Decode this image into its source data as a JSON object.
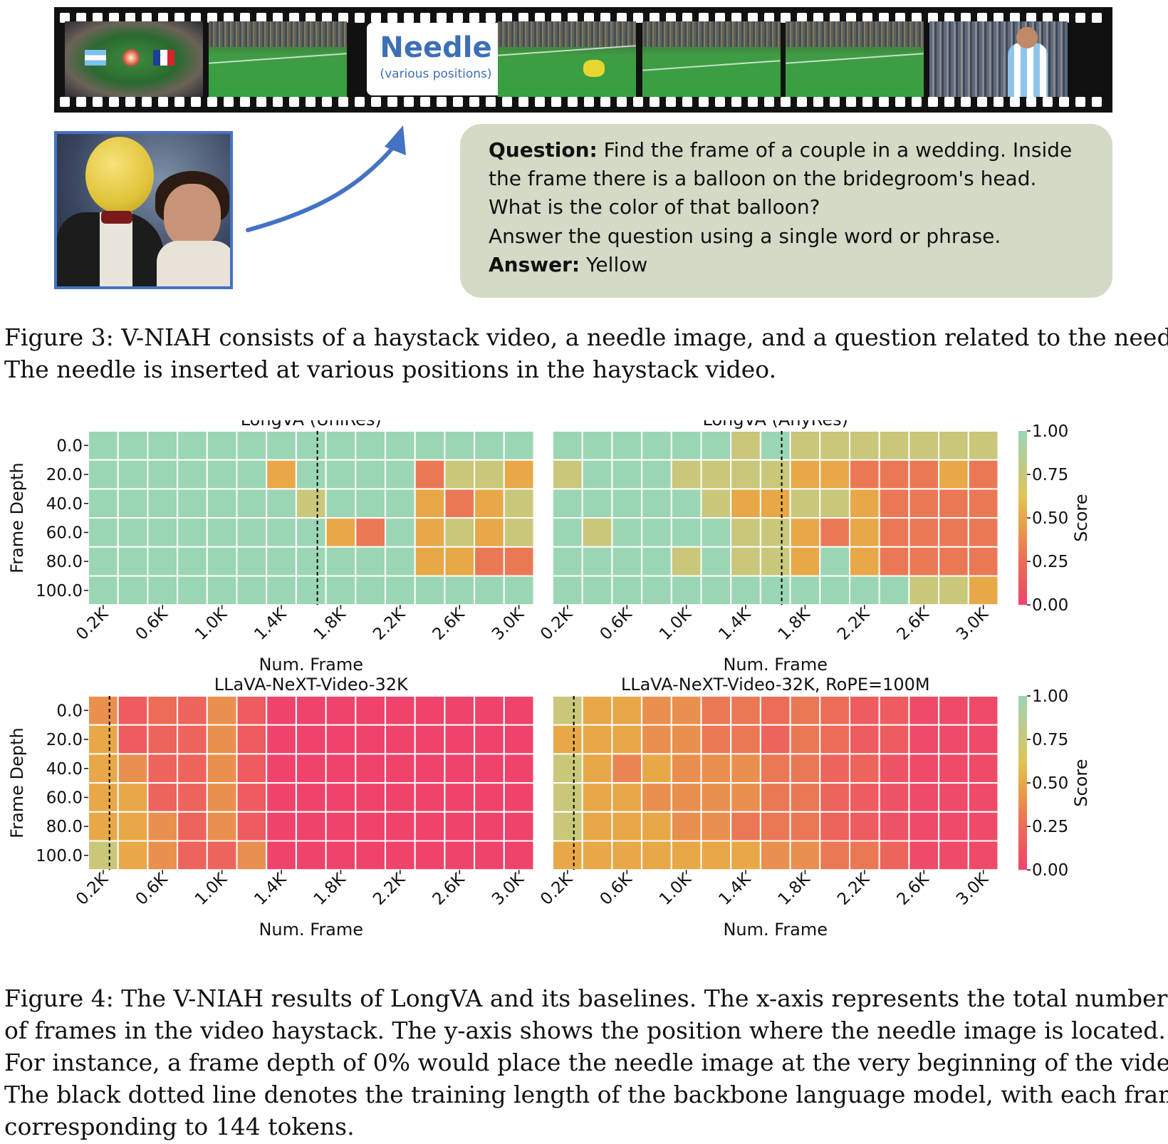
{
  "figure3": {
    "needle_label": "Needle",
    "needle_sublabel": "(various positions)",
    "question_label": "Question:",
    "question_lines": [
      "Find the frame of a couple in a wedding. Inside",
      "the frame there is a balloon on the bridegroom's head.",
      "What is the color of that balloon?",
      "Answer the question using a single word or phrase."
    ],
    "answer_label": "Answer:",
    "answer_text": "Yellow",
    "caption_lines": [
      "Figure 3: V-NIAH consists of a haystack video, a needle image, and a question related to the needle.",
      "The needle is inserted at various positions in the haystack video."
    ],
    "colors": {
      "needle_blue": "#3d6fb6",
      "qa_box": "#d3dac6",
      "arrow": "#4472c4"
    }
  },
  "figure4": {
    "caption_lines": [
      "Figure 4: The V-NIAH results of LongVA and its baselines. The x-axis represents the total number",
      "of frames in the video haystack. The y-axis shows the position where the needle image is located.",
      "For instance, a frame depth of 0% would place the needle image at the very beginning of the video.",
      "The black dotted line denotes the training length of the backbone language model, with each frame",
      "corresponding to 144 tokens."
    ]
  },
  "chart_data": [
    {
      "type": "heatmap",
      "title": "LongVA (UniRes)",
      "xlabel": "Num. Frame",
      "ylabel": "Frame Depth",
      "colorbar_label": "Score",
      "colorbar_ticks": [
        "1.00",
        "0.75",
        "0.50",
        "0.25",
        "0.00"
      ],
      "x_tick_labels": [
        "0.2K",
        "0.6K",
        "1.0K",
        "1.4K",
        "1.8K",
        "2.2K",
        "2.6K",
        "3.0K"
      ],
      "y": [
        "0.0",
        "20.0",
        "40.0",
        "60.0",
        "80.0",
        "100.0"
      ],
      "columns": 15,
      "dotted_line_after_column": 8,
      "values": [
        [
          1,
          1,
          1,
          1,
          1,
          1,
          1,
          1,
          1,
          1,
          1,
          1,
          1,
          1,
          1
        ],
        [
          1,
          1,
          1,
          1,
          1,
          1,
          0.5,
          1,
          1,
          1,
          1,
          0.3,
          0.75,
          0.75,
          0.5
        ],
        [
          1,
          1,
          1,
          1,
          1,
          1,
          1,
          0.75,
          1,
          1,
          1,
          0.5,
          0.3,
          0.5,
          0.75
        ],
        [
          1,
          1,
          1,
          1,
          1,
          1,
          1,
          1,
          0.5,
          0.3,
          1,
          0.5,
          0.75,
          0.5,
          0.75
        ],
        [
          1,
          1,
          1,
          1,
          1,
          1,
          1,
          1,
          1,
          1,
          1,
          0.5,
          0.5,
          0.3,
          0.3
        ],
        [
          1,
          1,
          1,
          1,
          1,
          1,
          1,
          1,
          1,
          1,
          1,
          1,
          1,
          1,
          1
        ]
      ]
    },
    {
      "type": "heatmap",
      "title": "LongVA (AnyRes)",
      "xlabel": "Num. Frame",
      "colorbar_label": "Score",
      "colorbar_ticks": [
        "1.00",
        "0.75",
        "0.50",
        "0.25",
        "0.00"
      ],
      "x_tick_labels": [
        "0.2K",
        "0.6K",
        "1.0K",
        "1.4K",
        "1.8K",
        "2.2K",
        "2.6K",
        "3.0K"
      ],
      "y": [
        "0.0",
        "20.0",
        "40.0",
        "60.0",
        "80.0",
        "100.0"
      ],
      "columns": 15,
      "dotted_line_after_column": 8,
      "values": [
        [
          1,
          1,
          1,
          1,
          1,
          1,
          0.75,
          1,
          0.75,
          0.75,
          0.75,
          0.75,
          0.75,
          0.75,
          0.75
        ],
        [
          0.75,
          1,
          1,
          1,
          0.75,
          0.75,
          0.75,
          0.75,
          0.5,
          0.5,
          0.3,
          0.3,
          0.3,
          0.5,
          0.3
        ],
        [
          1,
          1,
          1,
          1,
          1,
          0.75,
          0.5,
          0.5,
          0.75,
          0.75,
          0.5,
          0.3,
          0.3,
          0.3,
          0.3
        ],
        [
          1,
          0.75,
          1,
          1,
          1,
          1,
          0.75,
          0.75,
          0.5,
          0.3,
          0.5,
          0.3,
          0.3,
          0.3,
          0.3
        ],
        [
          1,
          1,
          1,
          1,
          0.75,
          1,
          0.75,
          0.75,
          0.5,
          1,
          0.5,
          0.3,
          0.3,
          0.3,
          0.3
        ],
        [
          1,
          1,
          1,
          1,
          1,
          1,
          1,
          1,
          1,
          1,
          1,
          1,
          0.75,
          0.75,
          0.5
        ]
      ]
    },
    {
      "type": "heatmap",
      "title": "LLaVA-NeXT-Video-32K",
      "xlabel": "Num. Frame",
      "ylabel": "Frame Depth",
      "colorbar_label": "Score",
      "colorbar_ticks": [
        "1.00",
        "0.75",
        "0.50",
        "0.25",
        "0.00"
      ],
      "x_tick_labels": [
        "0.2K",
        "0.6K",
        "1.0K",
        "1.4K",
        "1.8K",
        "2.2K",
        "2.6K",
        "3.0K"
      ],
      "y": [
        "0.0",
        "20.0",
        "40.0",
        "60.0",
        "80.0",
        "100.0"
      ],
      "columns": 15,
      "dotted_line_after_column": 1,
      "values": [
        [
          0.4,
          0.15,
          0.25,
          0.2,
          0.4,
          0.15,
          0,
          0,
          0,
          0,
          0,
          0,
          0,
          0,
          0
        ],
        [
          0.5,
          0.15,
          0.2,
          0.2,
          0.4,
          0.15,
          0,
          0,
          0,
          0,
          0,
          0,
          0,
          0,
          0
        ],
        [
          0.5,
          0.4,
          0.2,
          0.2,
          0.4,
          0.15,
          0,
          0,
          0,
          0,
          0,
          0,
          0,
          0,
          0
        ],
        [
          0.5,
          0.5,
          0.2,
          0.2,
          0.4,
          0.15,
          0,
          0,
          0,
          0,
          0,
          0,
          0,
          0,
          0
        ],
        [
          0.5,
          0.5,
          0.4,
          0.2,
          0.4,
          0.15,
          0,
          0,
          0,
          0,
          0,
          0,
          0,
          0,
          0
        ],
        [
          0.75,
          0.5,
          0.4,
          0.2,
          0.2,
          0.4,
          0,
          0,
          0,
          0,
          0,
          0,
          0,
          0,
          0
        ]
      ]
    },
    {
      "type": "heatmap",
      "title": "LLaVA-NeXT-Video-32K, RoPE=100M",
      "xlabel": "Num. Frame",
      "colorbar_label": "Score",
      "colorbar_ticks": [
        "1.00",
        "0.75",
        "0.50",
        "0.25",
        "0.00"
      ],
      "x_tick_labels": [
        "0.2K",
        "0.6K",
        "1.0K",
        "1.4K",
        "1.8K",
        "2.2K",
        "2.6K",
        "3.0K"
      ],
      "y": [
        "0.0",
        "20.0",
        "40.0",
        "60.0",
        "80.0",
        "100.0"
      ],
      "columns": 15,
      "dotted_line_after_column": 1,
      "values": [
        [
          0.75,
          0.5,
          0.5,
          0.4,
          0.4,
          0.3,
          0.3,
          0.25,
          0.3,
          0.25,
          0.15,
          0.15,
          0.05,
          0.05,
          0.05
        ],
        [
          0.5,
          0.5,
          0.5,
          0.4,
          0.4,
          0.3,
          0.3,
          0.2,
          0.3,
          0.25,
          0.15,
          0.15,
          0.05,
          0.05,
          0.05
        ],
        [
          0.75,
          0.5,
          0.35,
          0.5,
          0.4,
          0.4,
          0.4,
          0.3,
          0.3,
          0.2,
          0.2,
          0.1,
          0.05,
          0.05,
          0.05
        ],
        [
          0.75,
          0.5,
          0.5,
          0.4,
          0.4,
          0.4,
          0.4,
          0.3,
          0.3,
          0.2,
          0.15,
          0.1,
          0.05,
          0.05,
          0.05
        ],
        [
          0.75,
          0.5,
          0.5,
          0.5,
          0.4,
          0.4,
          0.3,
          0.3,
          0.3,
          0.2,
          0.15,
          0.1,
          0.05,
          0.05,
          0.05
        ],
        [
          0.5,
          0.5,
          0.5,
          0.5,
          0.5,
          0.5,
          0.5,
          0.4,
          0.4,
          0.3,
          0.3,
          0.2,
          0.05,
          0.05,
          0.05
        ]
      ]
    }
  ]
}
